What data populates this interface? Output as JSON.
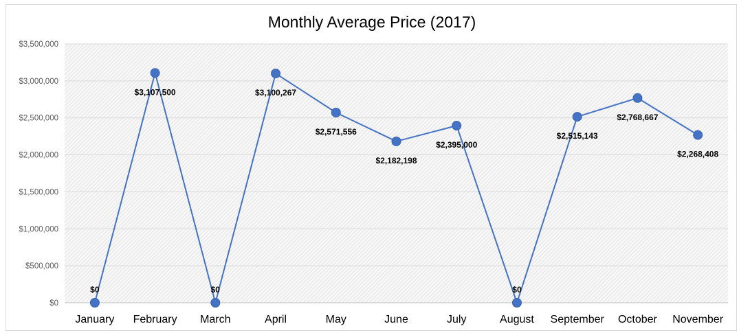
{
  "chart_data": {
    "type": "line",
    "title": "Monthly Average Price (2017)",
    "xlabel": "",
    "ylabel": "",
    "categories": [
      "January",
      "February",
      "March",
      "April",
      "May",
      "June",
      "July",
      "August",
      "September",
      "October",
      "November"
    ],
    "series": [
      {
        "values": [
          0,
          3107500,
          0,
          3100267,
          2571556,
          2182198,
          2395000,
          0,
          2515143,
          2768667,
          2268408
        ],
        "data_labels": [
          "$0",
          "$3,107,500",
          "$0",
          "$3,100,267",
          "$2,571,556",
          "$2,182,198",
          "$2,395,000",
          "$0",
          "$2,515,143",
          "$2,768,667",
          "$2,268,408"
        ],
        "color": "#4472c4",
        "marker_color": "#4472c4"
      }
    ],
    "ylim": [
      0,
      3500000
    ],
    "y_ticks": [
      0,
      500000,
      1000000,
      1500000,
      2000000,
      2500000,
      3000000,
      3500000
    ],
    "y_tick_labels": [
      "$0",
      "$500,000",
      "$1,000,000",
      "$1,500,000",
      "$2,000,000",
      "$2,500,000",
      "$3,000,000",
      "$3,500,000"
    ],
    "grid": true,
    "legend": "none",
    "plot_background": "hatched light gray"
  }
}
